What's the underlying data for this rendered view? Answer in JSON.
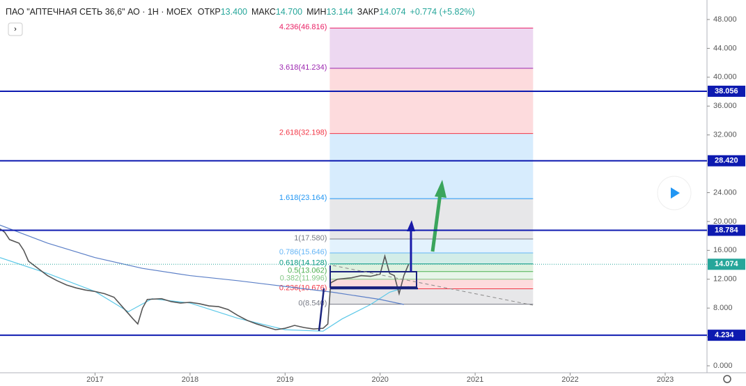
{
  "chart_data": {
    "type": "line",
    "header": {
      "symbol": "ПАО \"АПТЕЧНАЯ СЕТЬ 36,6\" АО · 1Н · MOEX",
      "open_label": "ОТКР",
      "open": "13.400",
      "high_label": "МАКС",
      "high": "14.700",
      "low_label": "МИН",
      "low": "13.144",
      "close_label": "ЗАКР",
      "close": "14.074",
      "change": "+0.774 (+5.82%)"
    },
    "xlim": [
      2016.0,
      2023.44
    ],
    "xticks": [
      2017,
      2018,
      2019,
      2020,
      2021,
      2022,
      2023
    ],
    "ylim": [
      0,
      48
    ],
    "yticks": [
      {
        "value": 0,
        "label": "0.000"
      },
      {
        "value": 4,
        "label": "4.000"
      },
      {
        "value": 8,
        "label": "8.000"
      },
      {
        "value": 12,
        "label": "12.000"
      },
      {
        "value": 16,
        "label": "16.000"
      },
      {
        "value": 20,
        "label": "20.000"
      },
      {
        "value": 24,
        "label": "24.000"
      },
      {
        "value": 28,
        "label": "28.000"
      },
      {
        "value": 32,
        "label": "32.000"
      },
      {
        "value": 36,
        "label": "36.000"
      },
      {
        "value": 40,
        "label": "40.000"
      },
      {
        "value": 44,
        "label": "44.000"
      },
      {
        "value": 48,
        "label": "48.000"
      }
    ],
    "series": [
      {
        "name": "Price",
        "color": "#555555",
        "x": [
          2016.0,
          2016.05,
          2016.1,
          2016.2,
          2016.25,
          2016.3,
          2016.4,
          2016.5,
          2016.6,
          2016.7,
          2016.8,
          2016.9,
          2017.0,
          2017.1,
          2017.2,
          2017.3,
          2017.4,
          2017.45,
          2017.5,
          2017.55,
          2017.7,
          2017.8,
          2017.9,
          2018.0,
          2018.1,
          2018.2,
          2018.3,
          2018.4,
          2018.5,
          2018.6,
          2018.7,
          2018.8,
          2018.9,
          2019.0,
          2019.1,
          2019.2,
          2019.3,
          2019.4,
          2019.45,
          2019.48,
          2019.55,
          2019.7,
          2019.8,
          2019.9,
          2020.0,
          2020.05,
          2020.1,
          2020.15,
          2020.2,
          2020.25,
          2020.3
        ],
        "values": [
          19,
          18.5,
          17.5,
          17,
          16,
          14.5,
          13.5,
          12.5,
          11.8,
          11.2,
          10.8,
          10.5,
          10.3,
          10,
          9.5,
          8,
          6.5,
          5.8,
          8,
          9.2,
          9.3,
          8.9,
          8.7,
          8.8,
          8.6,
          8.3,
          8.2,
          7.8,
          7,
          6.3,
          5.8,
          5.4,
          5.0,
          5.2,
          5.6,
          5.3,
          5.1,
          5.2,
          5.8,
          11.5,
          12,
          12.2,
          12.5,
          12.4,
          12.7,
          15.2,
          12.8,
          12.5,
          10,
          12.5,
          14.074
        ]
      },
      {
        "name": "MA long",
        "color": "#5b7fc7",
        "x": [
          2016.0,
          2016.5,
          2017.0,
          2017.5,
          2018.0,
          2018.5,
          2019.0,
          2019.5,
          2020.0,
          2020.25
        ],
        "values": [
          19.5,
          17,
          15,
          13.5,
          12.5,
          11.8,
          11,
          10.2,
          9.2,
          8.5
        ]
      },
      {
        "name": "MA short",
        "color": "#5bc8e8",
        "x": [
          2016.0,
          2016.5,
          2017.0,
          2017.35,
          2017.6,
          2018.0,
          2018.5,
          2019.0,
          2019.4,
          2019.6,
          2019.9,
          2020.1,
          2020.3
        ],
        "values": [
          15,
          12.8,
          10.3,
          7.5,
          9.3,
          8.7,
          6.6,
          5,
          4.8,
          6.5,
          8.5,
          10.2,
          11
        ]
      }
    ],
    "horizontal_lines": [
      {
        "value": 38.056,
        "label": "38.056"
      },
      {
        "value": 28.42,
        "label": "28.420"
      },
      {
        "value": 18.784,
        "label": "18.784"
      },
      {
        "value": 4.234,
        "label": "4.234"
      }
    ],
    "last_price": {
      "value": 14.074,
      "label": "14.074"
    },
    "fib": {
      "x": [
        2019.47,
        2021.61
      ],
      "levels": [
        {
          "value": 46.816,
          "label": "4.236(46.816)",
          "color": "#e91e63"
        },
        {
          "value": 41.234,
          "label": "3.618(41.234)",
          "color": "#9c27b0"
        },
        {
          "value": 32.198,
          "label": "2.618(32.198)",
          "color": "#f23645"
        },
        {
          "value": 23.164,
          "label": "1.618(23.164)",
          "color": "#2196f3"
        },
        {
          "value": 17.58,
          "label": "1(17.580)",
          "color": "#787b86"
        },
        {
          "value": 15.646,
          "label": "0.786(15.646)",
          "color": "#64b5f6"
        },
        {
          "value": 14.128,
          "label": "0.618(14.128)",
          "color": "#089981"
        },
        {
          "value": 13.062,
          "label": "0.5(13.062)",
          "color": "#4caf50"
        },
        {
          "value": 11.996,
          "label": "0.382(11.996)",
          "color": "#81c784"
        },
        {
          "value": 10.676,
          "label": "0.236(10.676)",
          "color": "#f23645"
        },
        {
          "value": 8.54,
          "label": "0(8.540)",
          "color": "#787b86"
        }
      ]
    }
  }
}
